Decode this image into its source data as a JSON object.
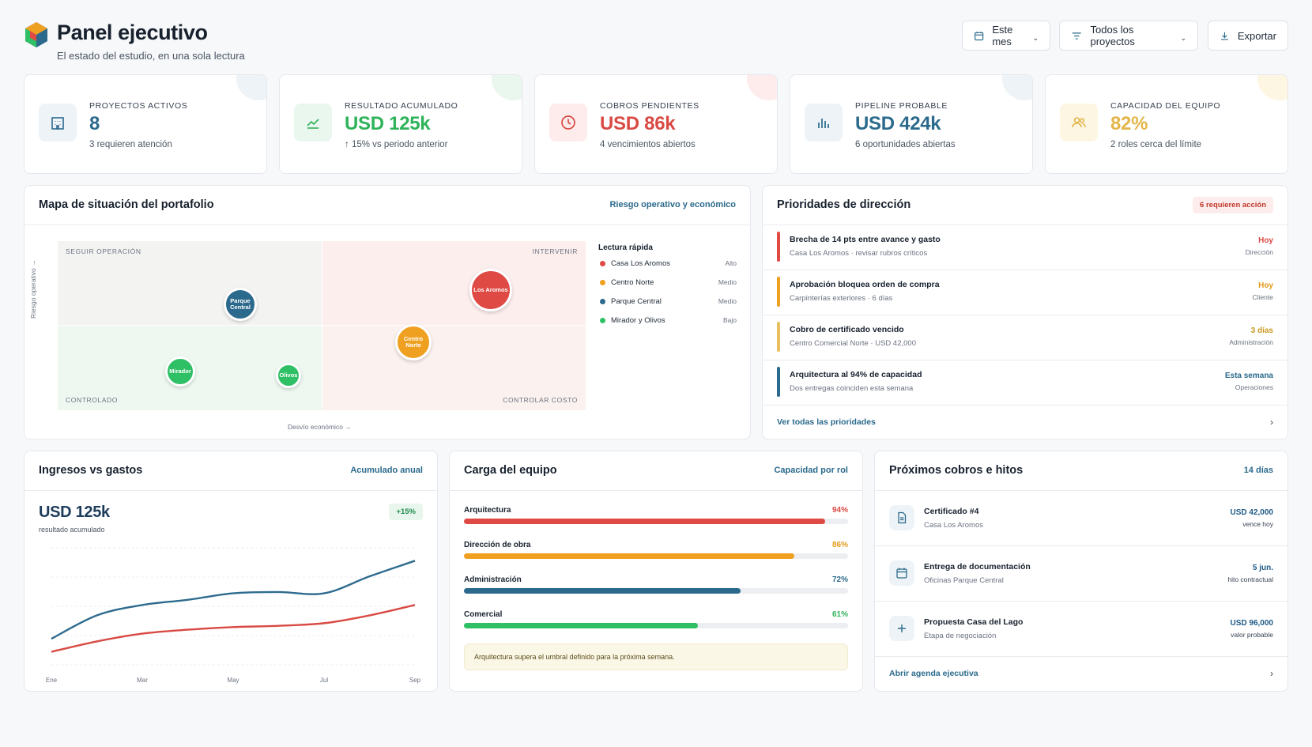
{
  "header": {
    "title": "Panel ejecutivo",
    "subtitle": "El estado del estudio, en una sola lectura",
    "buttons": {
      "period": "Este mes",
      "projects": "Todos los proyectos",
      "export": "Exportar"
    }
  },
  "kpis": [
    {
      "label": "PROYECTOS ACTIVOS",
      "value": "8",
      "sub": "3 requieren atención",
      "color": "#2b6a8c",
      "icon": "building-icon"
    },
    {
      "label": "RESULTADO ACUMULADO",
      "value": "USD 125k",
      "sub": "↑ 15% vs periodo anterior",
      "color": "#2eb35a",
      "icon": "trend-up-icon"
    },
    {
      "label": "COBROS PENDIENTES",
      "value": "USD 86k",
      "sub": "4 vencimientos abiertos",
      "color": "#d94a44",
      "icon": "clock-icon"
    },
    {
      "label": "PIPELINE PROBABLE",
      "value": "USD 424k",
      "sub": "6 oportunidades abiertas",
      "color": "#2b6a8c",
      "icon": "bar-chart-icon"
    },
    {
      "label": "CAPACIDAD DEL EQUIPO",
      "value": "82%",
      "sub": "2 roles cerca del límite",
      "color": "#e3b64a",
      "icon": "users-icon"
    }
  ],
  "portfolio": {
    "title": "Mapa de situación del portafolio",
    "link": "Riesgo operativo y económico",
    "quadrants": {
      "top_left": "SEGUIR OPERACIÓN",
      "top_right": "INTERVENIR",
      "bottom_left": "CONTROLADO",
      "bottom_right": "CONTROLAR COSTO"
    },
    "axis_y": "Riesgo operativo →",
    "axis_x": "Desvío económico →",
    "bubbles": [
      {
        "label": "Parque Central",
        "color": "#2b6a8c"
      },
      {
        "label": "Los Aromos",
        "color": "#e04a45"
      },
      {
        "label": "Centro Norte",
        "color": "#f0a020"
      },
      {
        "label": "Mirador",
        "color": "#2fbf65"
      },
      {
        "label": "Olivos",
        "color": "#2fbf65"
      }
    ],
    "legend": {
      "title": "Lectura rápida",
      "items": [
        {
          "name": "Casa Los Aromos",
          "level": "Alto",
          "color": "#e04a45"
        },
        {
          "name": "Centro Norte",
          "level": "Medio",
          "color": "#f0a020"
        },
        {
          "name": "Parque Central",
          "level": "Medio",
          "color": "#2b6a8c"
        },
        {
          "name": "Mirador y Olivos",
          "level": "Bajo",
          "color": "#2fbf65"
        }
      ]
    }
  },
  "priorities": {
    "title": "Prioridades de dirección",
    "badge": "6 requieren acción",
    "items": [
      {
        "title": "Brecha de 14 pts entre avance y gasto",
        "sub": "Casa Los Aromos · revisar rubros críticos",
        "when": "Hoy",
        "owner": "Dirección",
        "color": "#e04a45"
      },
      {
        "title": "Aprobación bloquea orden de compra",
        "sub": "Carpinterías exteriores · 6 días",
        "when": "Hoy",
        "owner": "Cliente",
        "color": "#f0a020"
      },
      {
        "title": "Cobro de certificado vencido",
        "sub": "Centro Comercial Norte · USD 42,000",
        "when": "3 días",
        "owner": "Administración",
        "color": "#e8c060"
      },
      {
        "title": "Arquitectura al 94% de capacidad",
        "sub": "Dos entregas coinciden esta semana",
        "when": "Esta semana",
        "owner": "Operaciones",
        "color": "#2b6a8c"
      }
    ],
    "footer": "Ver todas las prioridades"
  },
  "income": {
    "title": "Ingresos vs gastos",
    "link": "Acumulado anual",
    "value": "USD 125k",
    "sub": "resultado acumulado",
    "badge": "+15%"
  },
  "chart_data": {
    "type": "line",
    "x": [
      "Ene",
      "Feb",
      "Mar",
      "Abr",
      "May",
      "Jun",
      "Jul",
      "Ago",
      "Sep"
    ],
    "tick_labels": [
      "Ene",
      "Mar",
      "May",
      "Jul",
      "Sep"
    ],
    "series": [
      {
        "color": "#2e6b8f",
        "values": [
          40,
          58,
          66,
          70,
          75,
          76,
          75,
          88,
          100
        ]
      },
      {
        "color": "#d94a44",
        "values": [
          30,
          38,
          44,
          47,
          49,
          50,
          52,
          58,
          66
        ]
      }
    ],
    "ylim": [
      20,
      110
    ],
    "grid": true
  },
  "team": {
    "title": "Carga del equipo",
    "link": "Capacidad por rol",
    "roles": [
      {
        "name": "Arquitectura",
        "pct": 94,
        "label": "94%",
        "color": "#e04a45"
      },
      {
        "name": "Dirección de obra",
        "pct": 86,
        "label": "86%",
        "color": "#f0a020"
      },
      {
        "name": "Administración",
        "pct": 72,
        "label": "72%",
        "color": "#2b6a8c"
      },
      {
        "name": "Comercial",
        "pct": 61,
        "label": "61%",
        "color": "#2fbf65"
      }
    ],
    "note": "Arquitectura supera el umbral definido para la próxima semana."
  },
  "upcoming": {
    "title": "Próximos cobros e hitos",
    "link": "14 días",
    "items": [
      {
        "title": "Certificado #4",
        "sub": "Casa Los Aromos",
        "value": "USD 42,000",
        "detail": "vence hoy",
        "icon": "document-icon"
      },
      {
        "title": "Entrega de documentación",
        "sub": "Oficinas Parque Central",
        "value": "5 jun.",
        "detail": "hito contractual",
        "icon": "calendar-icon"
      },
      {
        "title": "Propuesta Casa del Lago",
        "sub": "Etapa de negociación",
        "value": "USD 96,000",
        "detail": "valor probable",
        "icon": "plus-icon"
      }
    ],
    "footer": "Abrir agenda ejecutiva"
  }
}
